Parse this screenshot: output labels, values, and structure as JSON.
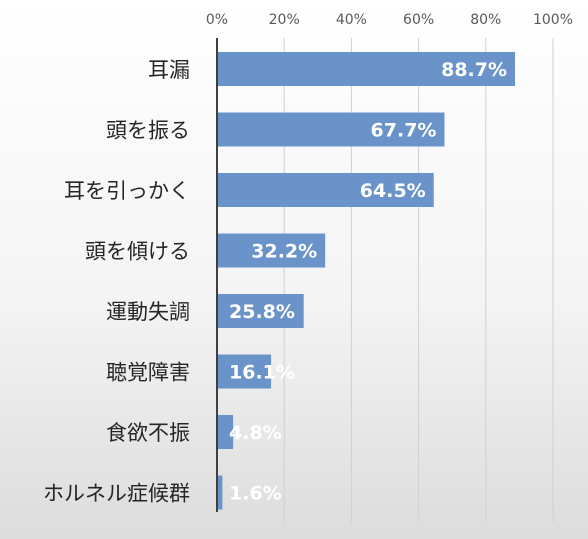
{
  "chart_data": {
    "type": "bar",
    "orientation": "horizontal",
    "categories": [
      "耳漏",
      "頭を振る",
      "耳を引っかく",
      "頭を傾ける",
      "運動失調",
      "聴覚障害",
      "食欲不振",
      "ホルネル症候群"
    ],
    "values": [
      88.7,
      67.7,
      64.5,
      32.2,
      25.8,
      16.1,
      4.8,
      1.6
    ],
    "data_labels": [
      "88.7%",
      "67.7%",
      "64.5%",
      "32.2%",
      "25.8%",
      "16.1%",
      "4.8%",
      "1.6%"
    ],
    "x_ticks": [
      0,
      20,
      40,
      60,
      80,
      100
    ],
    "x_tick_labels": [
      "0%",
      "20%",
      "40%",
      "60%",
      "80%",
      "100%"
    ],
    "xlim": [
      0,
      100
    ],
    "x_axis_position": "top",
    "grid": true,
    "bar_color": "#6a93c9",
    "title": "",
    "xlabel": "",
    "ylabel": ""
  }
}
